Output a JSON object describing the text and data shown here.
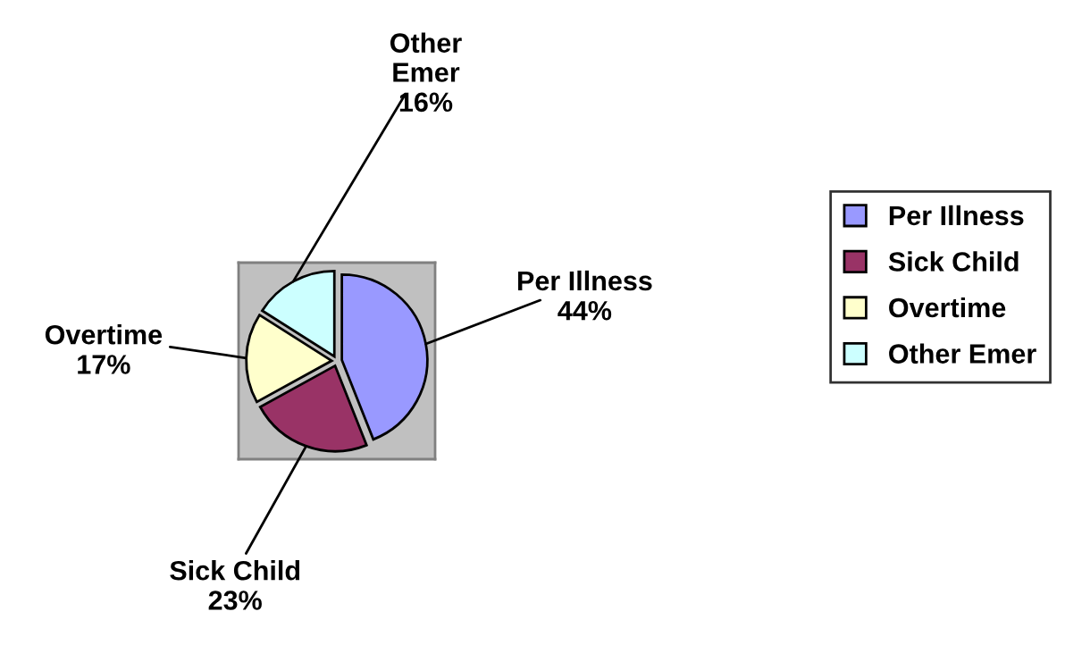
{
  "chart_data": {
    "type": "pie",
    "categories": [
      "Per Illness",
      "Sick Child",
      "Overtime",
      "Other Emer"
    ],
    "values": [
      44,
      23,
      17,
      16
    ],
    "value_labels": [
      "44%",
      "23%",
      "17%",
      "16%"
    ],
    "colors": [
      "#9999ff",
      "#993366",
      "#ffffcc",
      "#ccffff"
    ],
    "legend": "right"
  }
}
